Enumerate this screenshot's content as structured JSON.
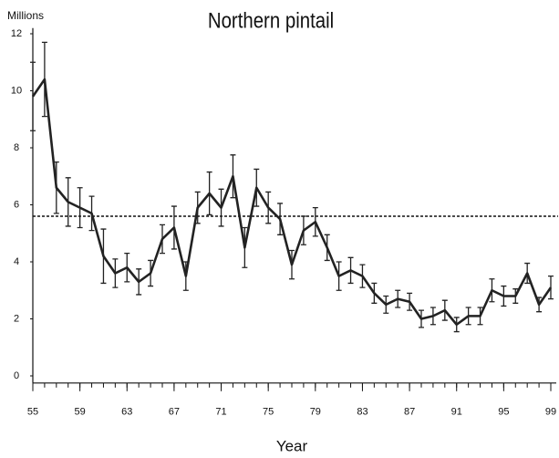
{
  "chart_data": {
    "type": "line",
    "title": "Northern pintail",
    "y_label": "Millions",
    "x_label": "Year",
    "x": [
      55,
      56,
      57,
      58,
      59,
      60,
      61,
      62,
      63,
      64,
      65,
      66,
      67,
      68,
      69,
      70,
      71,
      72,
      73,
      74,
      75,
      76,
      77,
      78,
      79,
      80,
      81,
      82,
      83,
      84,
      85,
      86,
      87,
      88,
      89,
      90,
      91,
      92,
      93,
      94,
      95,
      96,
      97,
      98,
      99
    ],
    "values": [
      9.8,
      10.4,
      6.6,
      6.1,
      5.9,
      5.7,
      4.2,
      3.6,
      3.8,
      3.3,
      3.6,
      4.8,
      5.2,
      3.5,
      5.9,
      6.4,
      5.9,
      7.0,
      4.5,
      6.6,
      5.9,
      5.5,
      3.9,
      5.1,
      5.4,
      4.5,
      3.5,
      3.7,
      3.5,
      2.9,
      2.5,
      2.7,
      2.6,
      2.0,
      2.1,
      2.3,
      1.8,
      2.1,
      2.1,
      3.0,
      2.8,
      2.8,
      3.6,
      2.5,
      3.1
    ],
    "errors": [
      1.2,
      1.3,
      0.9,
      0.85,
      0.7,
      0.6,
      0.95,
      0.5,
      0.5,
      0.45,
      0.45,
      0.5,
      0.75,
      0.5,
      0.55,
      0.75,
      0.65,
      0.75,
      0.7,
      0.65,
      0.55,
      0.55,
      0.5,
      0.5,
      0.5,
      0.45,
      0.5,
      0.45,
      0.4,
      0.35,
      0.3,
      0.3,
      0.3,
      0.3,
      0.3,
      0.35,
      0.25,
      0.3,
      0.3,
      0.4,
      0.35,
      0.25,
      0.35,
      0.25,
      0.4
    ],
    "color": "#222222",
    "reference_line": 5.6,
    "xlim": [
      55,
      99
    ],
    "ylim": [
      -0.25,
      12.2
    ],
    "xticks": [
      55,
      59,
      63,
      67,
      71,
      75,
      79,
      83,
      87,
      91,
      95,
      99
    ],
    "yticks": [
      0,
      2,
      4,
      6,
      8,
      10,
      12
    ]
  }
}
